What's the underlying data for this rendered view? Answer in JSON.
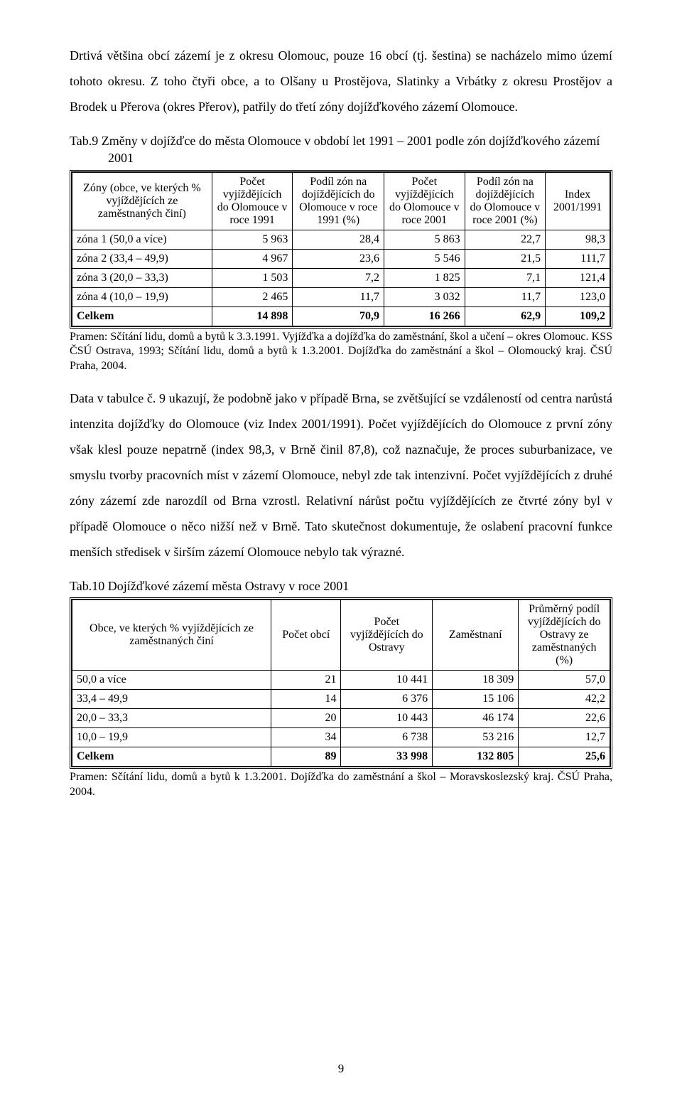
{
  "para1": "Drtivá většina obcí zázemí je z okresu Olomouc, pouze 16 obcí (tj. šestina) se nacházelo mimo území tohoto okresu. Z toho čtyři obce, a to Olšany u Prostějova, Slatinky a Vrbátky z okresu Prostějov a Brodek u Přerova (okres Přerov), patřily do třetí zóny dojížďkového zázemí Olomouce.",
  "tab9": {
    "caption": "Tab.9 Změny v dojížďce do města Olomouce v období let 1991 – 2001 podle zón dojížďkového zázemí 2001",
    "headers": [
      "Zóny (obce, ve kterých % vyjíždějících ze zaměstnaných činí)",
      "Počet vyjíždějících do Olomouce v roce 1991",
      "Podíl zón na dojíždějících do Olomouce v roce 1991 (%)",
      "Počet vyjíždějících do Olomouce v roce 2001",
      "Podíl zón na dojíždějících do Olomouce v roce 2001 (%)",
      "Index 2001/1991"
    ],
    "rows": [
      {
        "label": "zóna 1 (50,0 a více)",
        "v": [
          "5 963",
          "28,4",
          "5 863",
          "22,7",
          "98,3"
        ]
      },
      {
        "label": "zóna 2 (33,4 – 49,9)",
        "v": [
          "4 967",
          "23,6",
          "5 546",
          "21,5",
          "111,7"
        ]
      },
      {
        "label": "zóna 3 (20,0 – 33,3)",
        "v": [
          "1 503",
          "7,2",
          "1 825",
          "7,1",
          "121,4"
        ]
      },
      {
        "label": "zóna 4 (10,0 – 19,9)",
        "v": [
          "2 465",
          "11,7",
          "3 032",
          "11,7",
          "123,0"
        ]
      }
    ],
    "totals": {
      "label": "Celkem",
      "v": [
        "14 898",
        "70,9",
        "16 266",
        "62,9",
        "109,2"
      ]
    },
    "source": "Pramen: Sčítání lidu, domů a bytů k 3.3.1991. Vyjížďka a dojížďka do zaměstnání, škol a učení – okres Olomouc. KSS ČSÚ Ostrava, 1993; Sčítání lidu, domů a bytů k 1.3.2001. Dojížďka do zaměstnání a škol – Olomoucký kraj. ČSÚ Praha, 2004.",
    "col_widths": [
      "26%",
      "15%",
      "17%",
      "15%",
      "15%",
      "12%"
    ]
  },
  "para2": "Data v tabulce č. 9 ukazují, že podobně jako v případě Brna, se zvětšující se vzdáleností od centra narůstá intenzita dojížďky do Olomouce (viz Index 2001/1991). Počet vyjíždějících do Olomouce z první zóny však klesl pouze nepatrně (index 98,3, v Brně činil 87,8), což naznačuje, že proces suburbanizace, ve smyslu tvorby pracovních míst v zázemí Olomouce, nebyl zde tak intenzivní. Počet vyjíždějících z druhé zóny zázemí zde narozdíl od Brna vzrostl. Relativní nárůst počtu vyjíždějících ze čtvrté zóny byl v případě Olomouce o něco nižší než v Brně. Tato skutečnost dokumentuje, že oslabení pracovní funkce menších středisek v širším zázemí Olomouce nebylo tak výrazné.",
  "tab10": {
    "caption": "Tab.10 Dojížďkové zázemí města Ostravy v roce 2001",
    "headers": [
      "Obce, ve kterých % vyjíždějících ze zaměstnaných činí",
      "Počet obcí",
      "Počet vyjíždějících do Ostravy",
      "Zaměstnaní",
      "Průměrný podíl vyjíždějících do Ostravy ze zaměstnaných (%)"
    ],
    "rows": [
      {
        "label": "50,0 a více",
        "v": [
          "21",
          "10 441",
          "18 309",
          "57,0"
        ]
      },
      {
        "label": "33,4 – 49,9",
        "v": [
          "14",
          "6 376",
          "15 106",
          "42,2"
        ]
      },
      {
        "label": "20,0 – 33,3",
        "v": [
          "20",
          "10 443",
          "46 174",
          "22,6"
        ]
      },
      {
        "label": "10,0 – 19,9",
        "v": [
          "34",
          "6 738",
          "53 216",
          "12,7"
        ]
      }
    ],
    "totals": {
      "label": "Celkem",
      "v": [
        "89",
        "33 998",
        "132 805",
        "25,6"
      ]
    },
    "source": "Pramen: Sčítání lidu, domů a bytů k 1.3.2001. Dojížďka do zaměstnání a škol – Moravskoslezský kraj. ČSÚ Praha, 2004.",
    "col_widths": [
      "37%",
      "13%",
      "17%",
      "16%",
      "17%"
    ]
  },
  "page_number": "9"
}
